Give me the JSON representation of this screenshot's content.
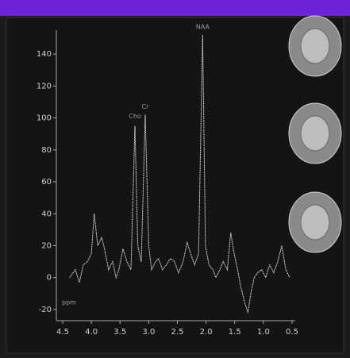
{
  "chart_data": {
    "type": "line",
    "x_label": "ppm",
    "x": [
      4.38,
      4.28,
      4.21,
      4.14,
      4.07,
      4.0,
      3.95,
      3.89,
      3.82,
      3.77,
      3.7,
      3.63,
      3.57,
      3.52,
      3.45,
      3.38,
      3.31,
      3.24,
      3.19,
      3.13,
      3.06,
      3.0,
      2.95,
      2.88,
      2.83,
      2.76,
      2.69,
      2.62,
      2.55,
      2.48,
      2.4,
      2.33,
      2.27,
      2.2,
      2.13,
      2.06,
      2.01,
      1.95,
      1.88,
      1.83,
      1.76,
      1.7,
      1.63,
      1.57,
      1.51,
      1.45,
      1.4,
      1.33,
      1.27,
      1.22,
      1.16,
      1.1,
      1.03,
      0.96,
      0.89,
      0.82,
      0.75,
      0.68,
      0.61,
      0.54
    ],
    "values": [
      0,
      5,
      -3,
      8,
      10,
      15,
      40,
      20,
      25,
      18,
      5,
      10,
      0,
      5,
      18,
      10,
      5,
      95,
      20,
      10,
      102,
      20,
      5,
      10,
      12,
      5,
      8,
      12,
      10,
      3,
      10,
      22,
      15,
      8,
      15,
      152,
      20,
      8,
      5,
      0,
      5,
      10,
      5,
      28,
      15,
      5,
      -5,
      -15,
      -22,
      -10,
      0,
      3,
      5,
      0,
      8,
      3,
      10,
      20,
      5,
      0
    ],
    "color": "#e6e6e6",
    "xlim": [
      4.5,
      0.5
    ],
    "xticks": [
      4.5,
      {
        "value": 4,
        "label": "4.0"
      },
      3.5,
      {
        "value": 3,
        "label": "3.0"
      },
      2.5,
      {
        "value": 2,
        "label": "2.0"
      },
      1.5,
      {
        "value": 1,
        "label": "1.0"
      },
      0.5
    ],
    "ylim": [
      -26,
      155
    ],
    "yticks": [
      -20,
      0,
      20,
      40,
      60,
      80,
      100,
      120,
      140
    ],
    "annotations": [
      {
        "text": "Cho",
        "x": 3.24,
        "y": 101
      },
      {
        "text": "Cr",
        "x": 3.06,
        "y": 107
      },
      {
        "text": "NAA",
        "x": 2.06,
        "y": 157
      }
    ]
  }
}
